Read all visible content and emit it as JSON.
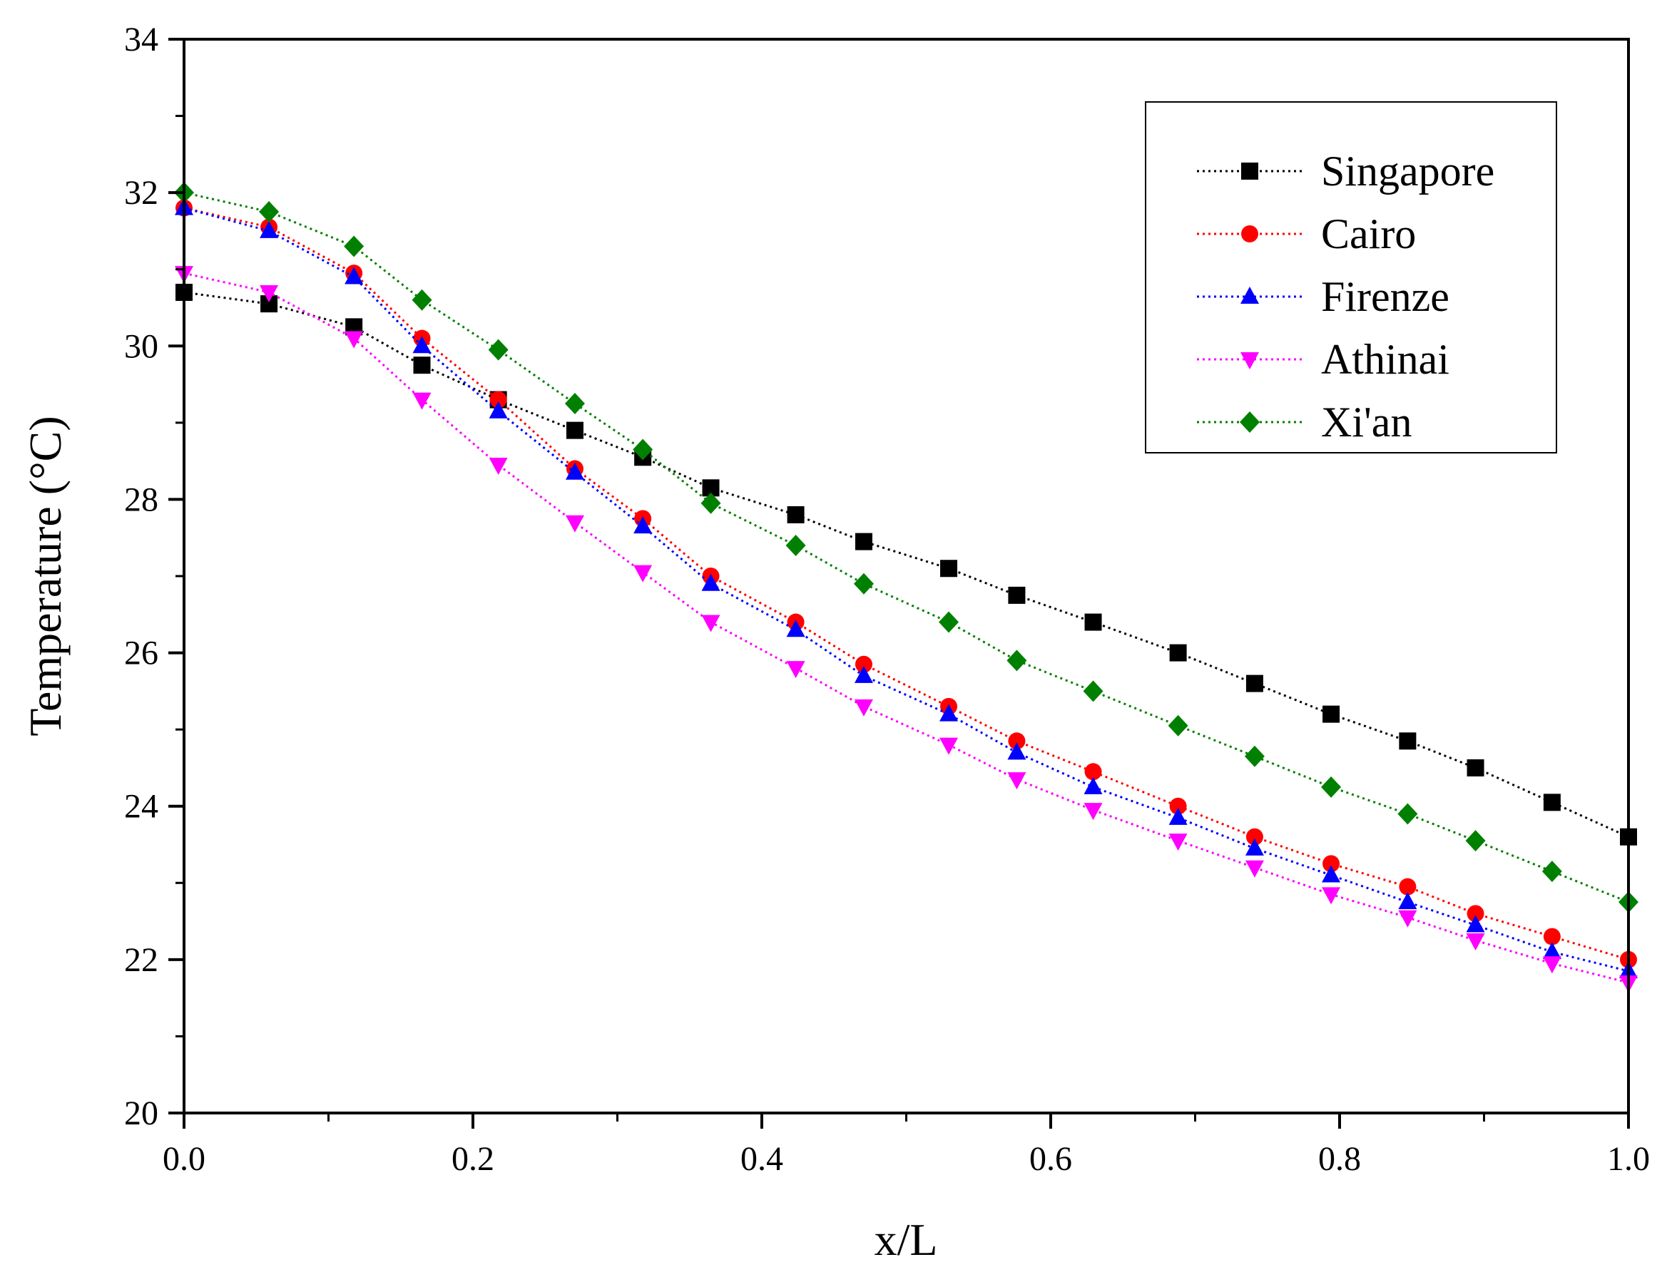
{
  "chart_data": {
    "type": "line",
    "title": "",
    "xlabel": "x/L",
    "ylabel": "Temperature (°C)",
    "xlim": [
      0.0,
      1.0
    ],
    "ylim": [
      20,
      34
    ],
    "x_ticks": [
      "0.0",
      "0.2",
      "0.4",
      "0.6",
      "0.8",
      "1.0"
    ],
    "y_ticks": [
      "20",
      "22",
      "24",
      "26",
      "28",
      "30",
      "32",
      "34"
    ],
    "grid": false,
    "legend_position": "top-right",
    "x": [
      0.0,
      0.0588,
      0.1176,
      0.1647,
      0.2176,
      0.2706,
      0.3176,
      0.3647,
      0.4235,
      0.4706,
      0.5294,
      0.5765,
      0.6294,
      0.6882,
      0.7412,
      0.7941,
      0.8471,
      0.8941,
      0.9471,
      1.0
    ],
    "series": [
      {
        "name": "Singapore",
        "color": "#000000",
        "marker": "square",
        "values": [
          30.7,
          30.55,
          30.25,
          29.75,
          29.3,
          28.9,
          28.55,
          28.15,
          27.8,
          27.45,
          27.1,
          26.75,
          26.4,
          26.0,
          25.6,
          25.2,
          24.85,
          24.5,
          24.05,
          23.6
        ]
      },
      {
        "name": "Cairo",
        "color": "#ff0000",
        "marker": "circle",
        "values": [
          31.8,
          31.55,
          30.95,
          30.1,
          29.3,
          28.4,
          27.75,
          27.0,
          26.4,
          25.85,
          25.3,
          24.85,
          24.45,
          24.0,
          23.6,
          23.25,
          22.95,
          22.6,
          22.3,
          22.0
        ]
      },
      {
        "name": "Firenze",
        "color": "#0000ff",
        "marker": "triangle-up",
        "values": [
          31.8,
          31.5,
          30.9,
          30.0,
          29.15,
          28.35,
          27.65,
          26.9,
          26.3,
          25.7,
          25.2,
          24.7,
          24.25,
          23.85,
          23.45,
          23.1,
          22.75,
          22.45,
          22.1,
          21.85
        ]
      },
      {
        "name": "Athinai",
        "color": "#ff00ff",
        "marker": "triangle-down",
        "values": [
          30.95,
          30.7,
          30.1,
          29.3,
          28.45,
          27.7,
          27.05,
          26.4,
          25.8,
          25.3,
          24.8,
          24.35,
          23.95,
          23.55,
          23.2,
          22.85,
          22.55,
          22.25,
          21.95,
          21.7
        ]
      },
      {
        "name": "Xi'an",
        "color": "#008000",
        "marker": "diamond",
        "values": [
          32.0,
          31.75,
          31.3,
          30.6,
          29.95,
          29.25,
          28.65,
          27.95,
          27.4,
          26.9,
          26.4,
          25.9,
          25.5,
          25.05,
          24.65,
          24.25,
          23.9,
          23.55,
          23.15,
          22.75
        ]
      }
    ]
  }
}
